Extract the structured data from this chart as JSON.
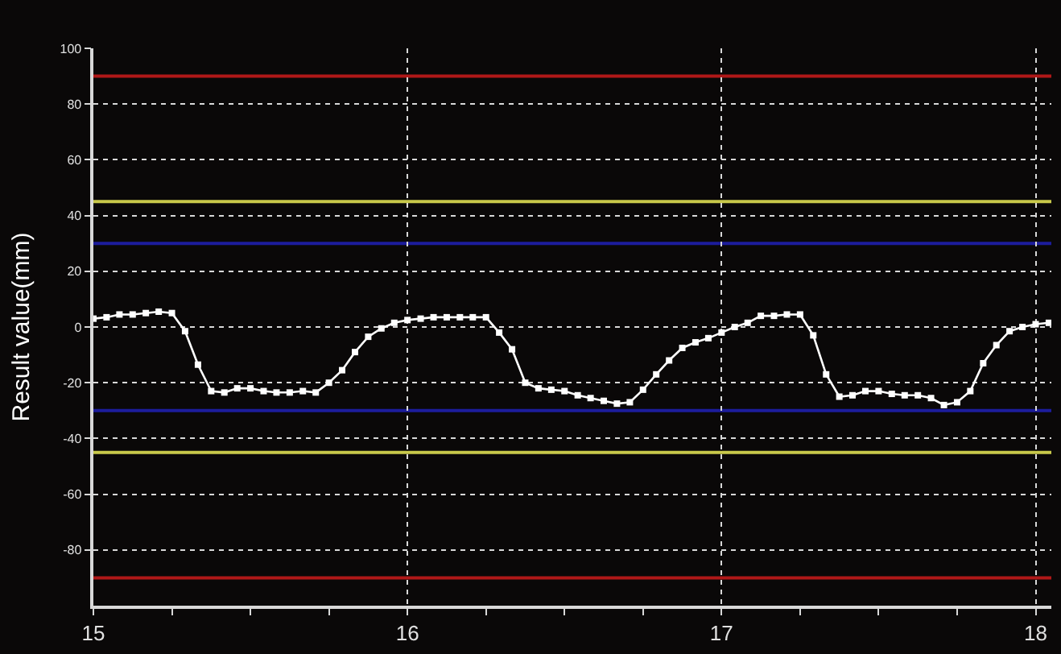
{
  "chart_data": {
    "type": "line",
    "ylabel": "Result value(mm)",
    "xlim": [
      15,
      18.05
    ],
    "ylim": [
      -100,
      100
    ],
    "xticks": [
      15,
      {
        "value": 15.25,
        "label": null
      },
      {
        "value": 15.5,
        "label": null
      },
      {
        "value": 15.75,
        "label": null
      },
      16,
      {
        "value": 16.25,
        "label": null
      },
      {
        "value": 16.5,
        "label": null
      },
      {
        "value": 16.75,
        "label": null
      },
      17,
      {
        "value": 17.25,
        "label": null
      },
      {
        "value": 17.5,
        "label": null
      },
      {
        "value": 17.75,
        "label": null
      },
      18
    ],
    "yticks": [
      -80,
      -60,
      -40,
      -20,
      0,
      20,
      40,
      60,
      80,
      100
    ],
    "grid": true,
    "marker": "square",
    "line_style": "solid",
    "ref_lines": [
      {
        "axis": "y",
        "value": 90,
        "color": "#b01818"
      },
      {
        "axis": "y",
        "value": -90,
        "color": "#b01818"
      },
      {
        "axis": "y",
        "value": 45,
        "color": "#c8c84a"
      },
      {
        "axis": "y",
        "value": -45,
        "color": "#c8c84a"
      },
      {
        "axis": "y",
        "value": 30,
        "color": "#1c1c9c"
      },
      {
        "axis": "y",
        "value": -30,
        "color": "#1c1c9c"
      }
    ],
    "series": [
      {
        "color": "#ffffff",
        "x": [
          15,
          15.042,
          15.083,
          15.125,
          15.167,
          15.208,
          15.25,
          15.292,
          15.333,
          15.375,
          15.417,
          15.458,
          15.5,
          15.542,
          15.583,
          15.625,
          15.667,
          15.708,
          15.75,
          15.792,
          15.833,
          15.875,
          15.917,
          15.958,
          16,
          16.042,
          16.083,
          16.125,
          16.167,
          16.208,
          16.25,
          16.292,
          16.333,
          16.375,
          16.417,
          16.458,
          16.5,
          16.542,
          16.583,
          16.625,
          16.667,
          16.708,
          16.75,
          16.792,
          16.833,
          16.875,
          16.917,
          16.958,
          17,
          17.042,
          17.083,
          17.125,
          17.167,
          17.208,
          17.25,
          17.292,
          17.333,
          17.375,
          17.417,
          17.458,
          17.5,
          17.542,
          17.583,
          17.625,
          17.667,
          17.708,
          17.75,
          17.792,
          17.833,
          17.875,
          17.917,
          17.958,
          18,
          18.042
        ],
        "values": [
          3,
          3.5,
          4.5,
          4.5,
          5,
          5.5,
          5,
          -1.5,
          -13.5,
          -23,
          -23.5,
          -22,
          -22,
          -23,
          -23.5,
          -23.5,
          -23,
          -23.5,
          -20,
          -15.5,
          -9,
          -3.5,
          -0.5,
          1.5,
          2.5,
          3,
          3.5,
          3.5,
          3.5,
          3.5,
          3.5,
          -2,
          -8,
          -20,
          -22,
          -22.5,
          -23,
          -24.5,
          -25.5,
          -26.5,
          -27.5,
          -27,
          -22.5,
          -17,
          -12,
          -7.5,
          -5.5,
          -4,
          -2,
          0,
          1.5,
          4,
          4,
          4.5,
          4.5,
          -3,
          -17,
          -25,
          -24.5,
          -23,
          -23,
          -24,
          -24.5,
          -24.5,
          -25.5,
          -28,
          -27,
          -23,
          -13,
          -6.5,
          -1.5,
          0,
          1,
          1.5
        ]
      }
    ]
  }
}
